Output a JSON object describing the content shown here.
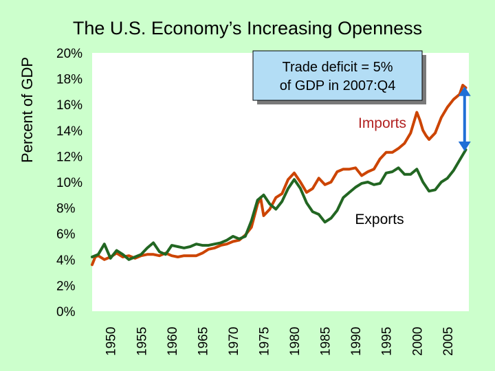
{
  "chart_data": {
    "type": "line",
    "title": "The U.S. Economy’s Increasing Openness",
    "xlabel": "",
    "ylabel": "Percent of GDP",
    "xlim": [
      1947,
      2008.5
    ],
    "ylim": [
      0,
      20
    ],
    "y_ticks": [
      "0%",
      "2%",
      "4%",
      "6%",
      "8%",
      "10%",
      "12%",
      "14%",
      "16%",
      "18%",
      "20%"
    ],
    "x_ticks": [
      "1950",
      "1955",
      "1960",
      "1965",
      "1970",
      "1975",
      "1980",
      "1985",
      "1990",
      "1995",
      "2000",
      "2005"
    ],
    "grid": false,
    "series": [
      {
        "name": "Imports",
        "color": "#cc4400",
        "x": [
          1947,
          1947.5,
          1948,
          1949,
          1950,
          1951,
          1952,
          1953,
          1954,
          1955,
          1956,
          1957,
          1958,
          1959,
          1960,
          1961,
          1962,
          1963,
          1964,
          1965,
          1966,
          1967,
          1968,
          1969,
          1970,
          1971,
          1972,
          1973,
          1974,
          1974.5,
          1975,
          1976,
          1977,
          1978,
          1979,
          1980,
          1981,
          1982,
          1983,
          1984,
          1985,
          1986,
          1987,
          1988,
          1989,
          1990,
          1991,
          1992,
          1993,
          1994,
          1995,
          1996,
          1997,
          1998,
          1999,
          2000,
          2000.5,
          2001,
          2001.5,
          2002,
          2003,
          2004,
          2005,
          2006,
          2007,
          2007.5,
          2008
        ],
        "values": [
          3.6,
          4.2,
          4.3,
          4.0,
          4.2,
          4.5,
          4.2,
          4.3,
          4.1,
          4.3,
          4.4,
          4.4,
          4.3,
          4.5,
          4.3,
          4.2,
          4.3,
          4.3,
          4.3,
          4.5,
          4.8,
          4.9,
          5.1,
          5.2,
          5.4,
          5.5,
          5.9,
          6.5,
          8.3,
          8.8,
          7.4,
          7.9,
          8.8,
          9.1,
          10.2,
          10.7,
          10.0,
          9.2,
          9.5,
          10.3,
          9.8,
          10.0,
          10.8,
          11.0,
          11.0,
          11.1,
          10.5,
          10.8,
          11.0,
          11.8,
          12.3,
          12.3,
          12.6,
          13.0,
          13.8,
          15.4,
          14.8,
          14.0,
          13.6,
          13.3,
          13.8,
          15.0,
          15.8,
          16.4,
          16.8,
          17.5,
          17.3
        ],
        "label": "Imports"
      },
      {
        "name": "Exports",
        "color": "#226622",
        "x": [
          1947,
          1948,
          1949,
          1950,
          1951,
          1952,
          1953,
          1954,
          1955,
          1956,
          1957,
          1958,
          1959,
          1960,
          1961,
          1962,
          1963,
          1964,
          1965,
          1966,
          1967,
          1968,
          1969,
          1970,
          1971,
          1972,
          1973,
          1974,
          1975,
          1976,
          1977,
          1978,
          1979,
          1980,
          1981,
          1982,
          1983,
          1984,
          1985,
          1986,
          1987,
          1988,
          1989,
          1990,
          1991,
          1992,
          1993,
          1994,
          1995,
          1996,
          1997,
          1998,
          1999,
          2000,
          2001,
          2002,
          2003,
          2004,
          2005,
          2006,
          2007,
          2008
        ],
        "values": [
          4.2,
          4.4,
          5.2,
          4.1,
          4.7,
          4.4,
          4.0,
          4.2,
          4.4,
          4.9,
          5.3,
          4.6,
          4.4,
          5.1,
          5.0,
          4.9,
          5.0,
          5.2,
          5.1,
          5.1,
          5.2,
          5.3,
          5.5,
          5.8,
          5.6,
          5.8,
          7.0,
          8.6,
          9.0,
          8.3,
          7.9,
          8.5,
          9.5,
          10.2,
          9.5,
          8.4,
          7.7,
          7.5,
          6.9,
          7.2,
          7.8,
          8.8,
          9.2,
          9.6,
          9.9,
          10.0,
          9.8,
          9.9,
          10.7,
          10.8,
          11.1,
          10.6,
          10.6,
          11.0,
          10.0,
          9.3,
          9.4,
          10.0,
          10.3,
          10.9,
          11.7,
          12.5
        ],
        "label": "Exports"
      }
    ],
    "annotations": [
      {
        "text_lines": [
          "Trade deficit = 5%",
          "of GDP in 2007:Q4"
        ],
        "type": "callout-box"
      },
      {
        "type": "double-arrow",
        "x": 2007.8,
        "from": 12.5,
        "to": 17.3,
        "color": "#1f6fd6"
      }
    ]
  }
}
